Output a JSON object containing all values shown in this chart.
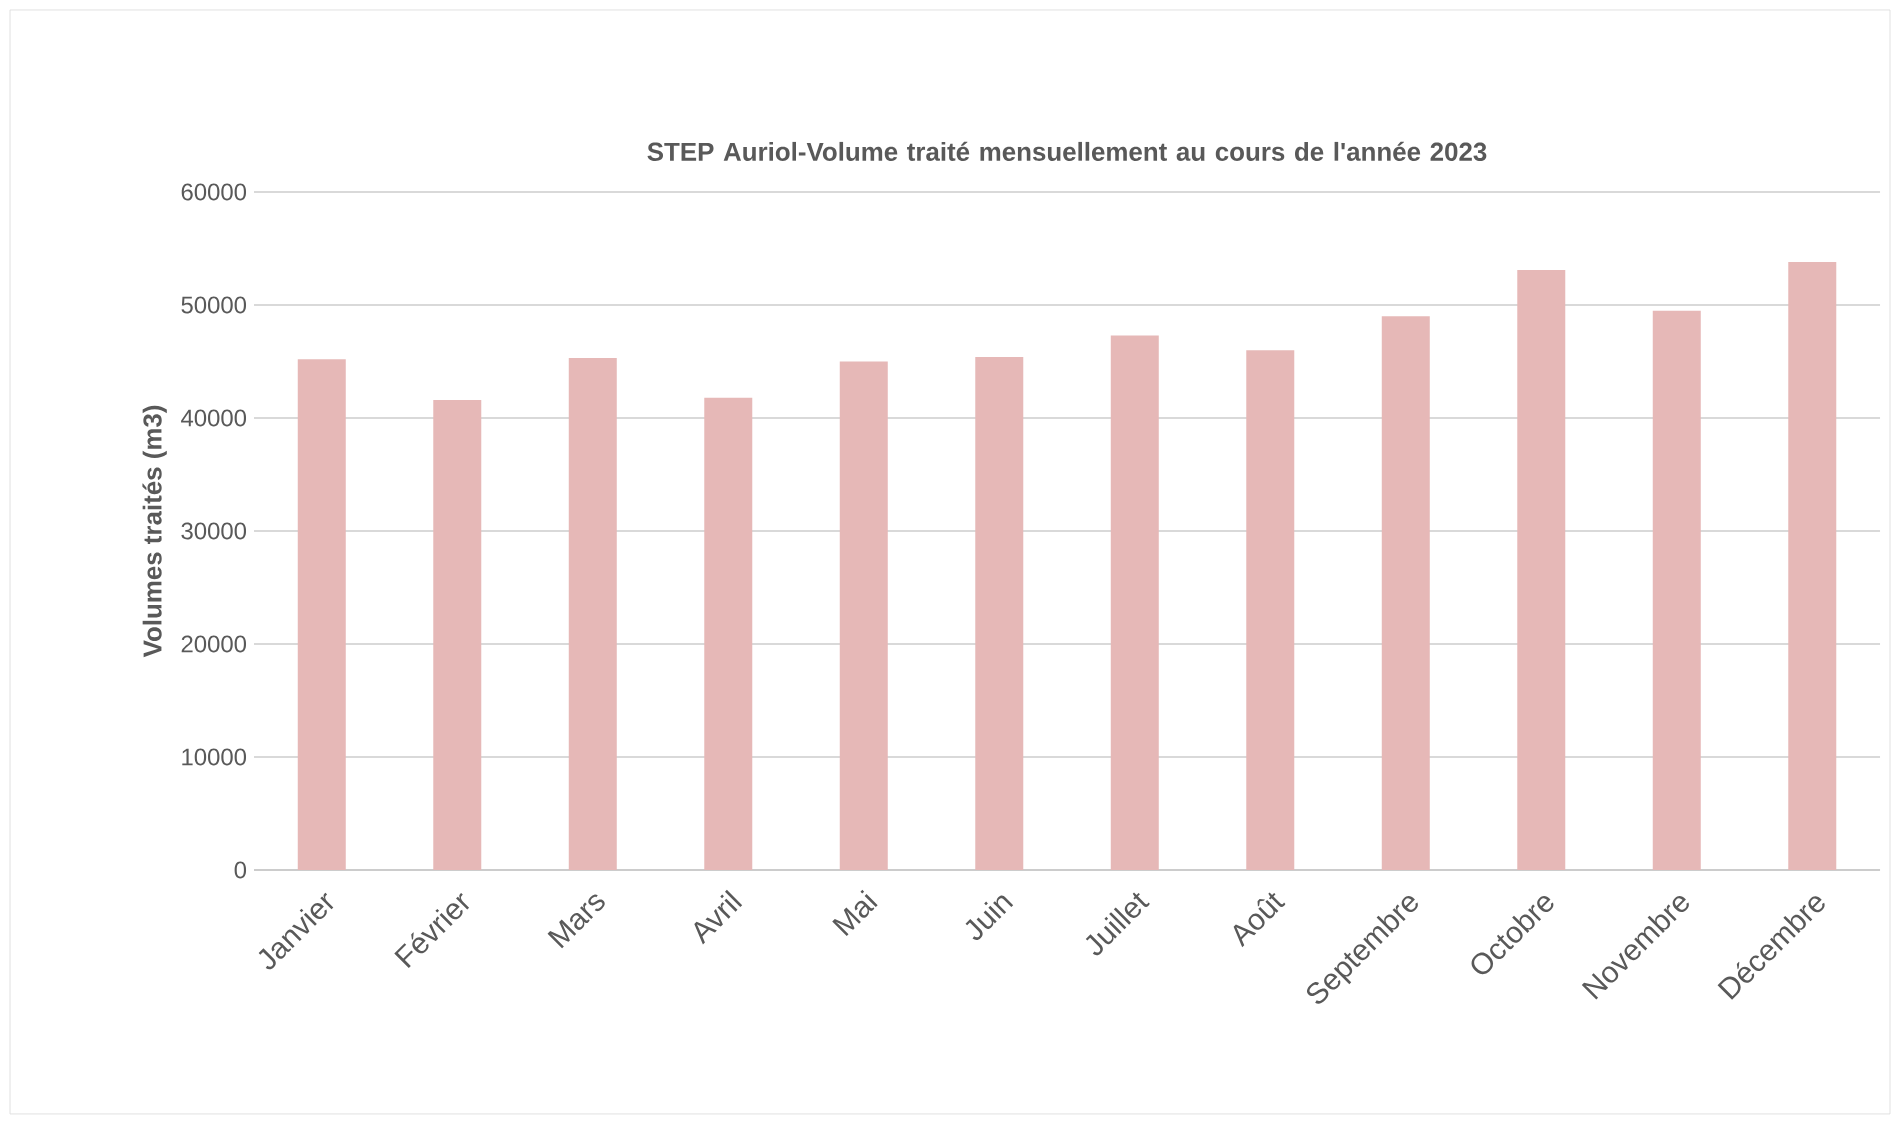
{
  "chart_data": {
    "type": "bar",
    "title": "STEP Auriol-Volume traité mensuellement au cours de l'année 2023",
    "ylabel": "Volumes traités (m3)",
    "categories": [
      "Janvier",
      "Février",
      "Mars",
      "Avril",
      "Mai",
      "Juin",
      "Juillet",
      "Août",
      "Septembre",
      "Octobre",
      "Novembre",
      "Décembre"
    ],
    "values": [
      45200,
      41600,
      45300,
      41800,
      45000,
      45400,
      47300,
      46000,
      49000,
      53100,
      49500,
      53800
    ],
    "color": "#e6b8b7",
    "ylim": [
      0,
      60000
    ],
    "yticks": [
      0,
      10000,
      20000,
      30000,
      40000,
      50000,
      60000
    ],
    "grid": "y"
  }
}
